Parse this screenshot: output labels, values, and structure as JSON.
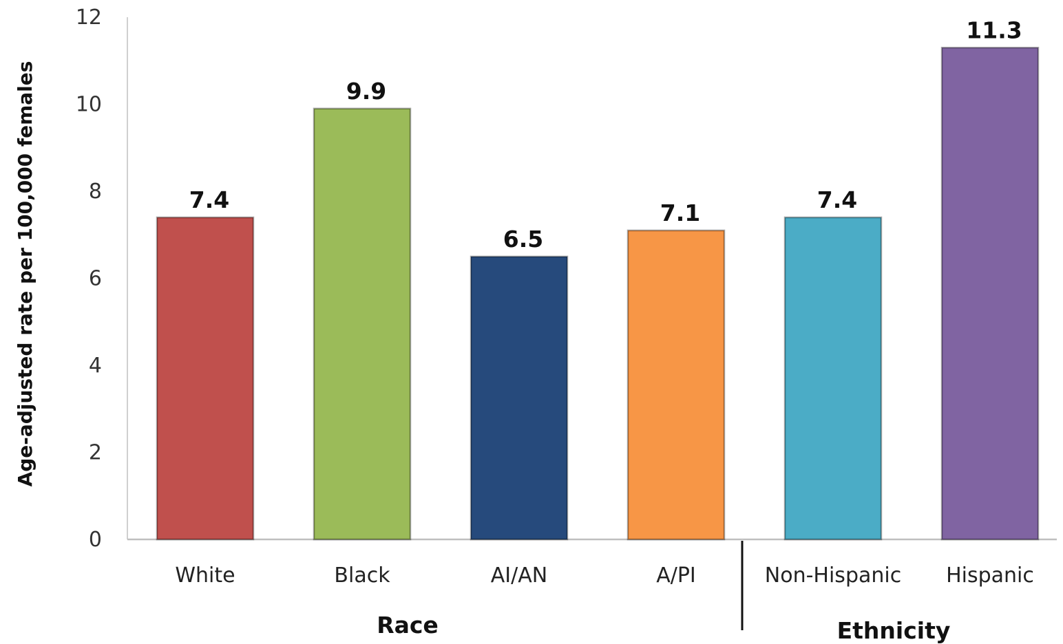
{
  "chart_data": {
    "type": "bar",
    "title": "",
    "xlabel": "",
    "ylabel": "Age-adjusted rate per 100,000 females",
    "ylim": [
      0,
      12
    ],
    "yticks": [
      0,
      2,
      4,
      6,
      8,
      10,
      12
    ],
    "categories": [
      "White",
      "Black",
      "AI/AN",
      "A/PI",
      "Non-Hispanic",
      "Hispanic"
    ],
    "values": [
      7.4,
      9.9,
      6.5,
      7.1,
      7.4,
      11.3
    ],
    "value_labels": [
      "7.4",
      "9.9",
      "6.5",
      "7.1",
      "7.4",
      "11.3"
    ],
    "colors": [
      "#c0504d",
      "#9bbb59",
      "#264a7c",
      "#f79646",
      "#4bacc6",
      "#8064a2"
    ],
    "groups": [
      {
        "label": "Race",
        "categories": [
          "White",
          "Black",
          "AI/AN",
          "A/PI"
        ]
      },
      {
        "label": "Ethnicity",
        "categories": [
          "Non-Hispanic",
          "Hispanic"
        ]
      }
    ],
    "grid": false,
    "legend": "none"
  }
}
